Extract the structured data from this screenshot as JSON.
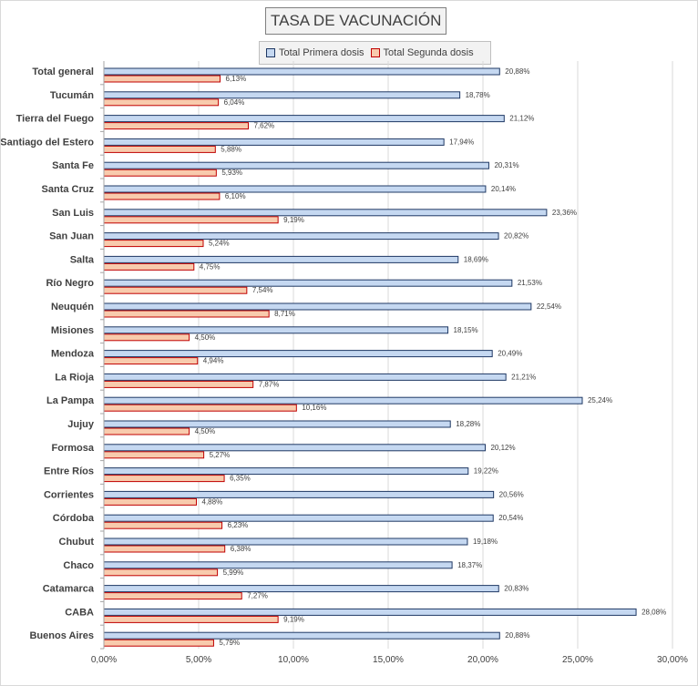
{
  "chart_data": {
    "type": "bar",
    "orientation": "horizontal",
    "title": "TASA DE VACUNACIÓN",
    "xlabel": "",
    "ylabel": "",
    "xlim": [
      0,
      30
    ],
    "x_ticks": [
      "0,00%",
      "5,00%",
      "10,00%",
      "15,00%",
      "20,00%",
      "25,00%",
      "30,00%"
    ],
    "x_tick_values": [
      0,
      5,
      10,
      15,
      20,
      25,
      30
    ],
    "grid": true,
    "legend_position": "top-center",
    "categories": [
      "Total general",
      "Tucumán",
      "Tierra del Fuego",
      "Santiago del Estero",
      "Santa Fe",
      "Santa Cruz",
      "San Luis",
      "San Juan",
      "Salta",
      "Río Negro",
      "Neuquén",
      "Misiones",
      "Mendoza",
      "La Rioja",
      "La Pampa",
      "Jujuy",
      "Formosa",
      "Entre Ríos",
      "Corrientes",
      "Córdoba",
      "Chubut",
      "Chaco",
      "Catamarca",
      "CABA",
      "Buenos Aires"
    ],
    "series": [
      {
        "name": "Total Primera dosis",
        "fill": "#c5d8f1",
        "stroke": "#1f3864",
        "values": [
          20.88,
          18.78,
          21.12,
          17.94,
          20.31,
          20.14,
          23.36,
          20.82,
          18.69,
          21.53,
          22.54,
          18.15,
          20.49,
          21.21,
          25.24,
          18.28,
          20.12,
          19.22,
          20.56,
          20.54,
          19.18,
          18.37,
          20.83,
          28.08,
          20.88
        ],
        "labels": [
          "20,88%",
          "18,78%",
          "21,12%",
          "17,94%",
          "20,31%",
          "20,14%",
          "23,36%",
          "20,82%",
          "18,69%",
          "21,53%",
          "22,54%",
          "18,15%",
          "20,49%",
          "21,21%",
          "25,24%",
          "18,28%",
          "20,12%",
          "19,22%",
          "20,56%",
          "20,54%",
          "19,18%",
          "18,37%",
          "20,83%",
          "28,08%",
          "20,88%"
        ]
      },
      {
        "name": "Total Segunda dosis",
        "fill": "#f8cbad",
        "stroke": "#c00000",
        "values": [
          6.13,
          6.04,
          7.62,
          5.88,
          5.93,
          6.1,
          9.19,
          5.24,
          4.75,
          7.54,
          8.71,
          4.5,
          4.94,
          7.87,
          10.16,
          4.5,
          5.27,
          6.35,
          4.88,
          6.23,
          6.38,
          5.99,
          7.27,
          9.19,
          5.79
        ],
        "labels": [
          "6,13%",
          "6,04%",
          "7,62%",
          "5,88%",
          "5,93%",
          "6,10%",
          "9,19%",
          "5,24%",
          "4,75%",
          "7,54%",
          "8,71%",
          "4,50%",
          "4,94%",
          "7,87%",
          "10,16%",
          "4,50%",
          "5,27%",
          "6,35%",
          "4,88%",
          "6,23%",
          "6,38%",
          "5,99%",
          "7,27%",
          "9,19%",
          "5,79%"
        ]
      }
    ]
  }
}
